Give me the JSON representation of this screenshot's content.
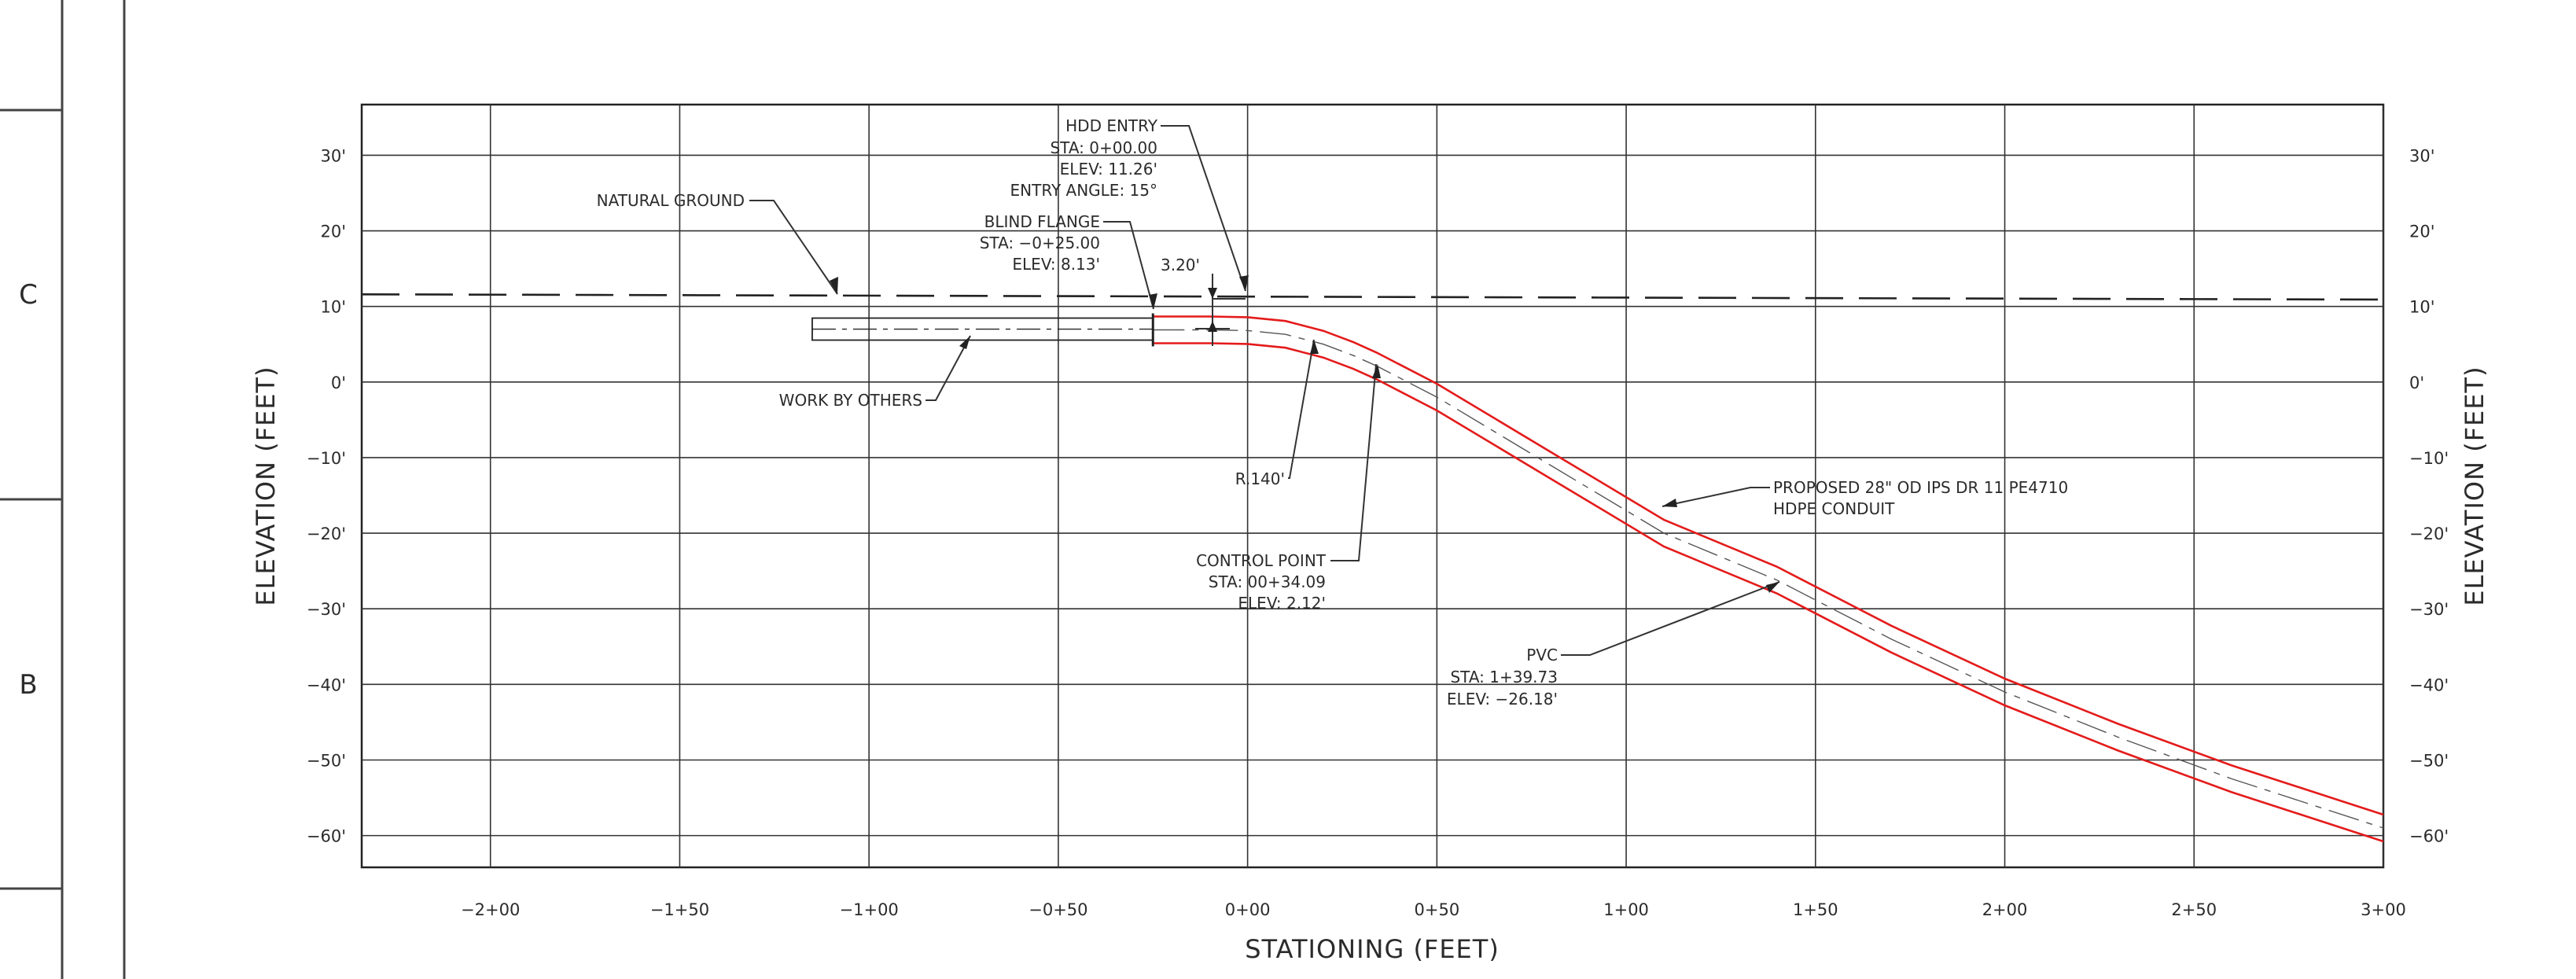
{
  "sheet": {
    "zone_letters": [
      "C",
      "B"
    ]
  },
  "axes": {
    "x_title": "STATIONING (FEET)",
    "y_title_left": "ELEVATION (FEET)",
    "y_title_right": "ELEVATION (FEET)",
    "x_ticks": [
      {
        "value": -200,
        "label": "−2+00"
      },
      {
        "value": -150,
        "label": "−1+50"
      },
      {
        "value": -100,
        "label": "−1+00"
      },
      {
        "value": -50,
        "label": "−0+50"
      },
      {
        "value": 0,
        "label": "0+00"
      },
      {
        "value": 50,
        "label": "0+50"
      },
      {
        "value": 100,
        "label": "1+00"
      },
      {
        "value": 150,
        "label": "1+50"
      },
      {
        "value": 200,
        "label": "2+00"
      },
      {
        "value": 250,
        "label": "2+50"
      },
      {
        "value": 300,
        "label": "3+00"
      }
    ],
    "y_ticks": [
      {
        "value": 30,
        "label": "30'"
      },
      {
        "value": 20,
        "label": "20'"
      },
      {
        "value": 10,
        "label": "10'"
      },
      {
        "value": 0,
        "label": "0'"
      },
      {
        "value": -10,
        "label": "−10'"
      },
      {
        "value": -20,
        "label": "−20'"
      },
      {
        "value": -30,
        "label": "−30'"
      },
      {
        "value": -40,
        "label": "−40'"
      },
      {
        "value": -50,
        "label": "−50'"
      },
      {
        "value": -60,
        "label": "−60'"
      }
    ],
    "x_range": [
      -234,
      300
    ],
    "y_range": [
      -64.2,
      36.7
    ]
  },
  "chart_data": {
    "type": "line",
    "x_range": [
      -234,
      300
    ],
    "y_range": [
      -64.2,
      36.7
    ],
    "grid": true,
    "series": [
      {
        "name": "NATURAL GROUND",
        "style": "dashed",
        "color": "#222222",
        "points": [
          [
            -234,
            11.6
          ],
          [
            0,
            11.3
          ],
          [
            300,
            10.9
          ]
        ]
      },
      {
        "name": "WORK BY OTHERS",
        "style": "outline",
        "color": "#222222",
        "points": [
          [
            -115,
            7.0
          ],
          [
            -25,
            7.0
          ]
        ]
      },
      {
        "name": "PROPOSED 28\" OD IPS DR 11 PE4710 HDPE CONDUIT",
        "style": "pipe",
        "color": "#e41b1b",
        "points": [
          [
            -25,
            6.9
          ],
          [
            -10,
            6.9
          ],
          [
            0,
            6.8
          ],
          [
            10,
            6.3
          ],
          [
            20,
            5.0
          ],
          [
            28,
            3.5
          ],
          [
            34.09,
            2.12
          ],
          [
            50,
            -2.0
          ],
          [
            80,
            -11.0
          ],
          [
            110,
            -20.0
          ],
          [
            139.73,
            -26.18
          ],
          [
            170,
            -34.0
          ],
          [
            200,
            -41.0
          ],
          [
            230,
            -47.0
          ],
          [
            260,
            -52.5
          ],
          [
            300,
            -59.0
          ]
        ]
      }
    ]
  },
  "annotations": {
    "hdd_entry": [
      "HDD ENTRY",
      "STA: 0+00.00",
      "ELEV: 11.26'",
      "ENTRY ANGLE: 15°"
    ],
    "blind_flange": [
      "BLIND FLANGE",
      "STA: −0+25.00",
      "ELEV: 8.13'"
    ],
    "natural_ground": "NATURAL GROUND",
    "dim_320": "3.20'",
    "work_by_others": "WORK BY OTHERS",
    "radius": "R.140'",
    "control_point": [
      "CONTROL POINT",
      "STA: 00+34.09",
      "ELEV: 2.12'"
    ],
    "proposed": [
      "PROPOSED 28\" OD IPS DR 11 PE4710",
      "HDPE CONDUIT"
    ],
    "pvc": [
      "PVC",
      "STA: 1+39.73",
      "ELEV: −26.18'"
    ]
  },
  "colors": {
    "pipe": "#e41b1b",
    "line": "#222222",
    "grid": "#222222"
  }
}
